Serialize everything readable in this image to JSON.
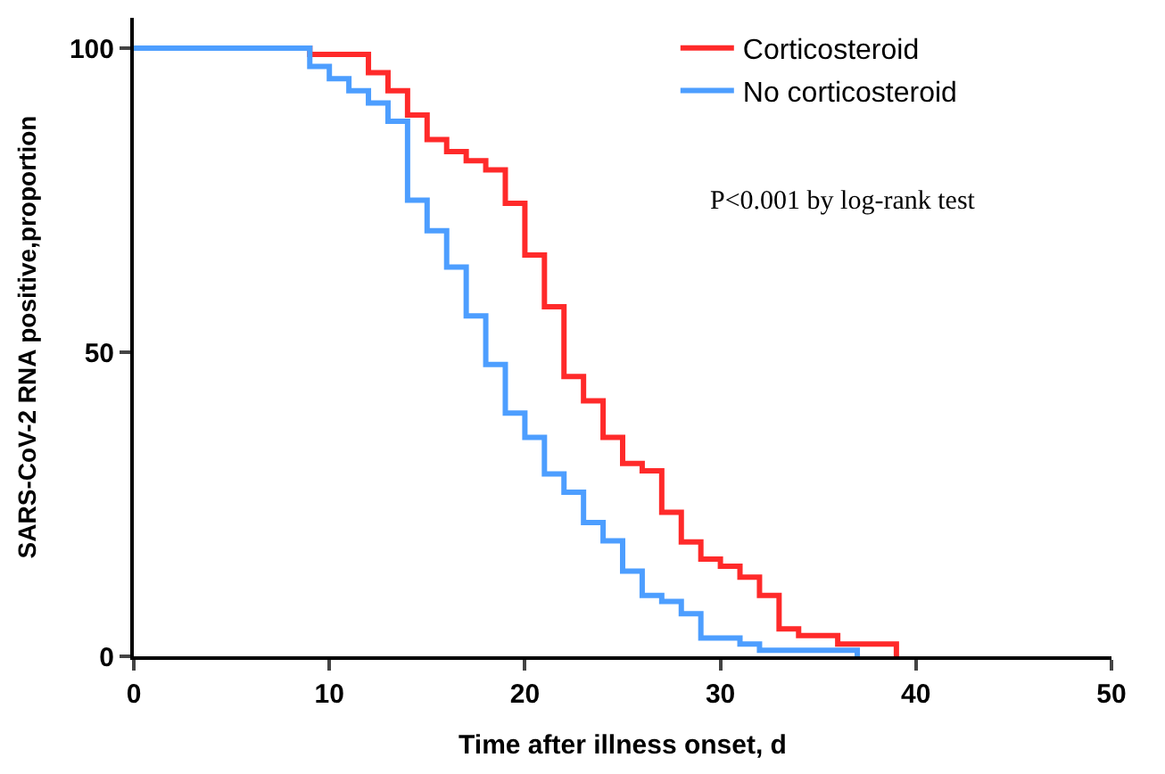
{
  "chart_data": {
    "type": "step",
    "xlabel": "Time after illness onset, d",
    "ylabel": "SARS-CoV-2 RNA positive,proportion",
    "xlim": [
      0,
      50
    ],
    "xticks": [
      0,
      10,
      20,
      30,
      40,
      50
    ],
    "ylim": [
      0,
      105
    ],
    "yticks": [
      0,
      50,
      100
    ],
    "legend": "top right",
    "marker": "none",
    "line_style": "solid",
    "annotations": [
      "P<0.001 by log-rank test"
    ],
    "series": [
      {
        "name": "Corticosteroid",
        "color": "#ff2a2a",
        "x": [
          0,
          9,
          12,
          13,
          14,
          15,
          16,
          17,
          18,
          19,
          20,
          21,
          22,
          23,
          24,
          25,
          26,
          27,
          28,
          29,
          30,
          31,
          32,
          33,
          34,
          36,
          39
        ],
        "values": [
          100,
          99,
          96,
          93,
          89,
          85,
          83,
          81.5,
          80,
          74.5,
          66,
          57.5,
          46,
          42,
          36,
          31.7,
          30.5,
          23.7,
          18.8,
          16,
          14.8,
          13,
          10,
          4.5,
          3.4,
          2,
          0
        ]
      },
      {
        "name": "No corticosteroid",
        "color": "#4d9eff",
        "x": [
          0,
          9,
          10,
          11,
          12,
          13,
          14,
          15,
          16,
          17,
          18,
          19,
          20,
          21,
          22,
          23,
          24,
          25,
          26,
          27,
          28,
          29,
          31,
          32,
          37
        ],
        "values": [
          100,
          97,
          95,
          93,
          91,
          88,
          75,
          70,
          64,
          56,
          48,
          40,
          36,
          30,
          27,
          22,
          19,
          14,
          10,
          9,
          7,
          3,
          2,
          1,
          0
        ]
      }
    ]
  }
}
